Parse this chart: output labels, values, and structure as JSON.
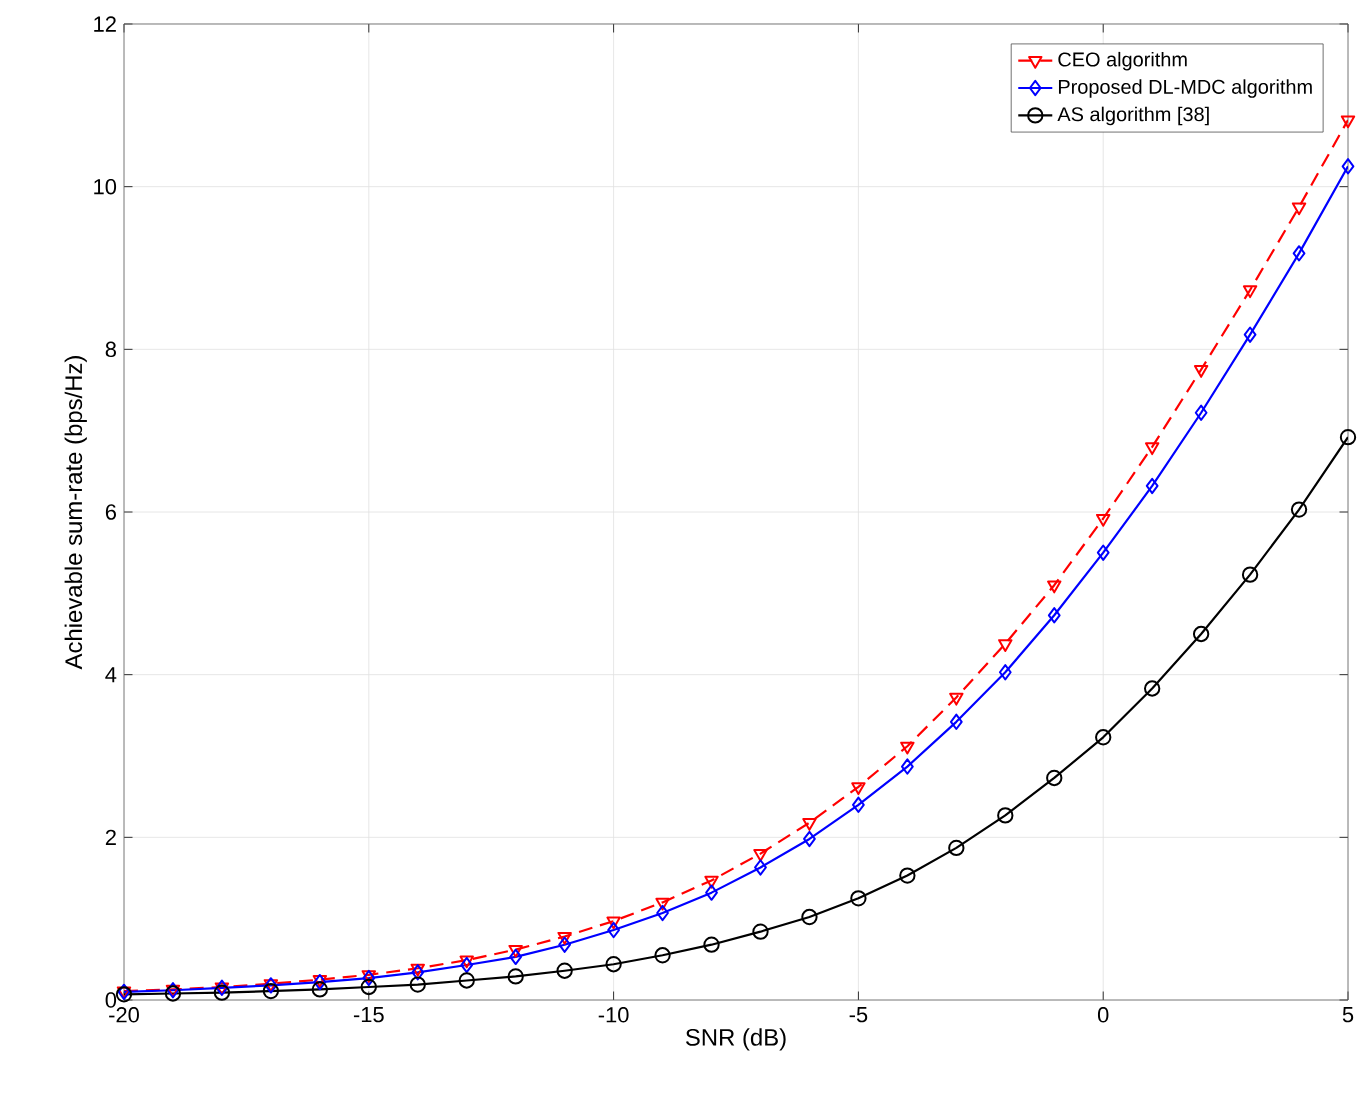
{
  "chart_data": {
    "type": "line",
    "xlabel": "SNR (dB)",
    "ylabel": "Achievable sum-rate (bps/Hz)",
    "x": [
      -20,
      -19,
      -18,
      -17,
      -16,
      -15,
      -14,
      -13,
      -12,
      -11,
      -10,
      -9,
      -8,
      -7,
      -6,
      -5,
      -4,
      -3,
      -2,
      -1,
      0,
      1,
      2,
      3,
      4,
      5
    ],
    "series": [
      {
        "name": "CEO algorithm",
        "color": "#ff0000",
        "marker": "triangle",
        "line_style": "dashed",
        "values": [
          0.11,
          0.13,
          0.16,
          0.2,
          0.25,
          0.31,
          0.39,
          0.49,
          0.62,
          0.78,
          0.97,
          1.2,
          1.47,
          1.8,
          2.18,
          2.62,
          3.12,
          3.72,
          4.38,
          5.1,
          5.92,
          6.8,
          7.75,
          8.73,
          9.75,
          10.82
        ]
      },
      {
        "name": "Proposed DL-MDC algorithm",
        "color": "#0000ff",
        "marker": "diamond",
        "line_style": "solid",
        "values": [
          0.1,
          0.12,
          0.15,
          0.18,
          0.22,
          0.27,
          0.34,
          0.43,
          0.53,
          0.68,
          0.86,
          1.07,
          1.32,
          1.63,
          1.98,
          2.4,
          2.87,
          3.42,
          4.03,
          4.73,
          5.5,
          6.32,
          7.22,
          8.18,
          9.18,
          10.25
        ]
      },
      {
        "name": "AS algorithm [38]",
        "color": "#000000",
        "marker": "circle",
        "line_style": "solid",
        "values": [
          0.07,
          0.08,
          0.09,
          0.11,
          0.13,
          0.16,
          0.19,
          0.24,
          0.29,
          0.36,
          0.44,
          0.55,
          0.68,
          0.84,
          1.02,
          1.25,
          1.53,
          1.87,
          2.27,
          2.73,
          3.23,
          3.83,
          4.5,
          5.23,
          6.03,
          6.92
        ]
      }
    ],
    "xlim": [
      -20,
      5
    ],
    "xticks": [
      -20,
      -15,
      -10,
      -5,
      0,
      5
    ],
    "ylim": [
      0,
      12
    ],
    "yticks": [
      0,
      2,
      4,
      6,
      8,
      10,
      12
    ],
    "grid": true,
    "legend": "top right"
  }
}
